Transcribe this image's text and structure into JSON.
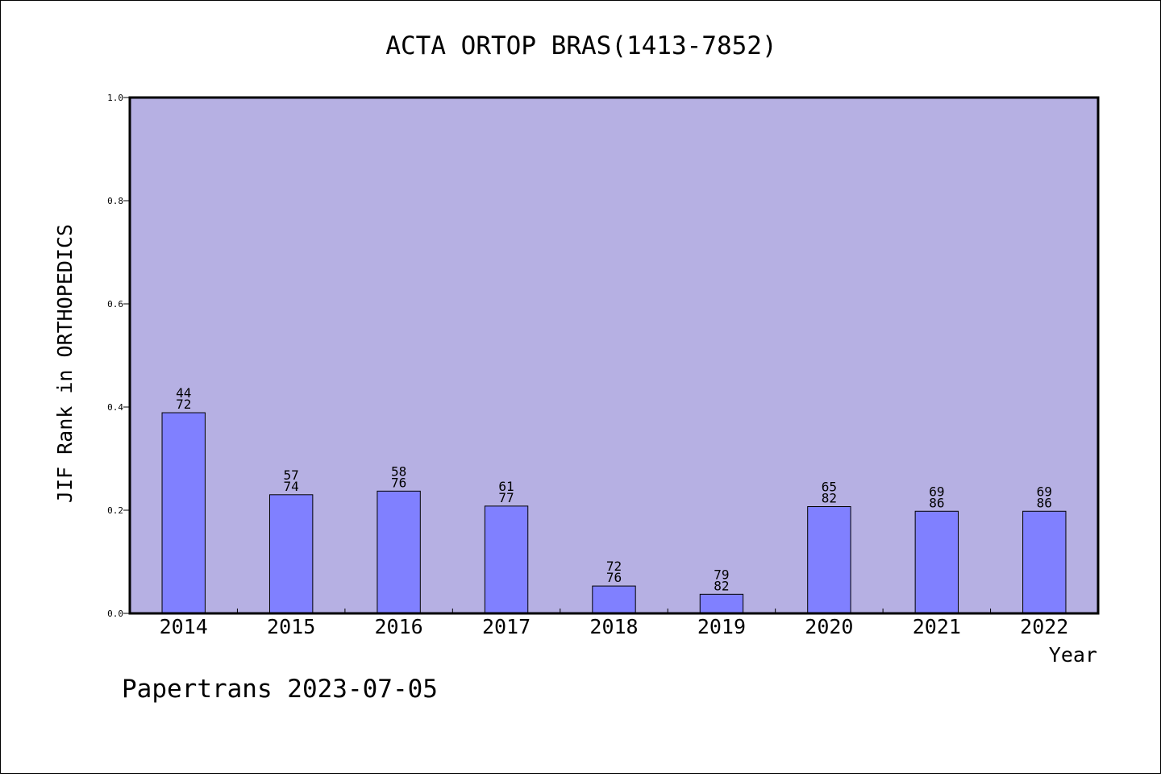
{
  "chart_data": {
    "type": "bar",
    "title": "ACTA ORTOP BRAS(1413-7852)",
    "xlabel": "Year",
    "ylabel": "JIF Rank in ORTHOPEDICS",
    "ylim": [
      0,
      1.0
    ],
    "yticks": [
      "0.0",
      "0.2",
      "0.4",
      "0.6",
      "0.8",
      "1.0"
    ],
    "categories": [
      "2014",
      "2015",
      "2016",
      "2017",
      "2018",
      "2019",
      "2020",
      "2021",
      "2022"
    ],
    "values": [
      0.389,
      0.23,
      0.237,
      0.208,
      0.053,
      0.037,
      0.207,
      0.198,
      0.198
    ],
    "rank_labels": [
      [
        "44",
        "72"
      ],
      [
        "57",
        "74"
      ],
      [
        "58",
        "76"
      ],
      [
        "61",
        "77"
      ],
      [
        "72",
        "76"
      ],
      [
        "79",
        "82"
      ],
      [
        "65",
        "82"
      ],
      [
        "69",
        "86"
      ],
      [
        "69",
        "86"
      ]
    ],
    "grid": false,
    "legend": "none"
  },
  "footer": "Papertrans 2023-07-05",
  "colors": {
    "plot_background": "#b6b0e3",
    "bar_fill": "#8080ff",
    "bar_stroke": "#000000"
  }
}
